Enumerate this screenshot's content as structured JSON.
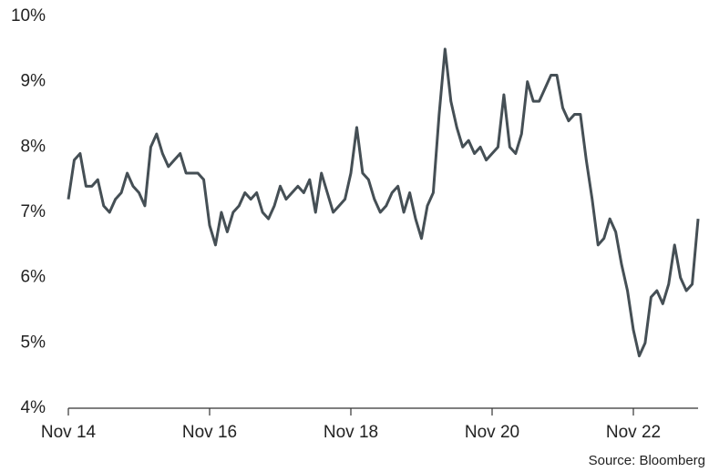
{
  "chart_data": {
    "type": "line",
    "categories": [
      "Nov 14",
      "Dec 14",
      "Jan 15",
      "Feb 15",
      "Mar 15",
      "Apr 15",
      "May 15",
      "Jun 15",
      "Jul 15",
      "Aug 15",
      "Sep 15",
      "Oct 15",
      "Nov 15",
      "Dec 15",
      "Jan 16",
      "Feb 16",
      "Mar 16",
      "Apr 16",
      "May 16",
      "Jun 16",
      "Jul 16",
      "Aug 16",
      "Sep 16",
      "Oct 16",
      "Nov 16",
      "Dec 16",
      "Jan 17",
      "Feb 17",
      "Mar 17",
      "Apr 17",
      "May 17",
      "Jun 17",
      "Jul 17",
      "Aug 17",
      "Sep 17",
      "Oct 17",
      "Nov 17",
      "Dec 17",
      "Jan 18",
      "Feb 18",
      "Mar 18",
      "Apr 18",
      "May 18",
      "Jun 18",
      "Jul 18",
      "Aug 18",
      "Sep 18",
      "Oct 18",
      "Nov 18",
      "Dec 18",
      "Jan 19",
      "Feb 19",
      "Mar 19",
      "Apr 19",
      "May 19",
      "Jun 19",
      "Jul 19",
      "Aug 19",
      "Sep 19",
      "Oct 19",
      "Nov 19",
      "Dec 19",
      "Jan 20",
      "Feb 20",
      "Mar 20",
      "Apr 20",
      "May 20",
      "Jun 20",
      "Jul 20",
      "Aug 20",
      "Sep 20",
      "Oct 20",
      "Nov 20",
      "Dec 20",
      "Jan 21",
      "Feb 21",
      "Mar 21",
      "Apr 21",
      "May 21",
      "Jun 21",
      "Jul 21",
      "Aug 21",
      "Sep 21",
      "Oct 21",
      "Nov 21",
      "Dec 21",
      "Jan 22",
      "Feb 22",
      "Mar 22",
      "Apr 22",
      "May 22",
      "Jun 22",
      "Jul 22",
      "Aug 22",
      "Sep 22",
      "Oct 22",
      "Nov 22",
      "Dec 22",
      "Jan 23",
      "Feb 23",
      "Mar 23",
      "Apr 23",
      "May 23",
      "Jun 23",
      "Jul 23",
      "Aug 23",
      "Sep 23",
      "Oct 23"
    ],
    "series": [
      {
        "color": "#454f55",
        "values": [
          7.2,
          7.8,
          7.9,
          7.4,
          7.4,
          7.5,
          7.1,
          7.0,
          7.2,
          7.3,
          7.6,
          7.4,
          7.3,
          7.1,
          8.0,
          8.2,
          7.9,
          7.7,
          7.8,
          7.9,
          7.6,
          7.6,
          7.6,
          7.5,
          6.8,
          6.5,
          7.0,
          6.7,
          7.0,
          7.1,
          7.3,
          7.2,
          7.3,
          7.0,
          6.9,
          7.1,
          7.4,
          7.2,
          7.3,
          7.4,
          7.3,
          7.5,
          7.0,
          7.6,
          7.3,
          7.0,
          7.1,
          7.2,
          7.6,
          8.3,
          7.6,
          7.5,
          7.2,
          7.0,
          7.1,
          7.3,
          7.4,
          7.0,
          7.3,
          6.9,
          6.6,
          7.1,
          7.3,
          8.5,
          9.5,
          8.7,
          8.3,
          8.0,
          8.1,
          7.9,
          8.0,
          7.8,
          7.9,
          8.0,
          8.8,
          8.0,
          7.9,
          8.2,
          9.0,
          8.7,
          8.7,
          8.9,
          9.1,
          9.1,
          8.6,
          8.4,
          8.5,
          8.5,
          7.8,
          7.2,
          6.5,
          6.6,
          6.9,
          6.7,
          6.2,
          5.8,
          5.2,
          4.8,
          5.0,
          5.7,
          5.8,
          5.6,
          5.9,
          6.5,
          6.0,
          5.8,
          5.9,
          6.9
        ]
      }
    ],
    "xticks": [
      "Nov 14",
      "Nov 16",
      "Nov 18",
      "Nov 20",
      "Nov 22"
    ],
    "ylim": [
      4,
      10
    ],
    "yticks": [
      {
        "value": 4,
        "label": "4%"
      },
      {
        "value": 5,
        "label": "5%"
      },
      {
        "value": 6,
        "label": "6%"
      },
      {
        "value": 7,
        "label": "7%"
      },
      {
        "value": 8,
        "label": "8%"
      },
      {
        "value": 9,
        "label": "9%"
      },
      {
        "value": 10,
        "label": "10%"
      }
    ],
    "source": "Source: Bloomberg"
  }
}
